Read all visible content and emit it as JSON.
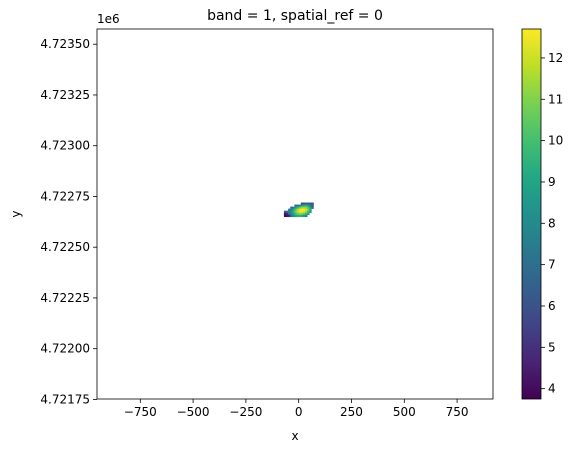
{
  "chart_data": {
    "type": "heatmap",
    "title": "band = 1, spatial_ref = 0",
    "xlabel": "x",
    "ylabel": "y",
    "y_offset_label": "1e6",
    "xlim": [
      -955,
      920
    ],
    "ylim": [
      4721752,
      4723575
    ],
    "x_ticks": [
      {
        "value": -750,
        "label": "−750"
      },
      {
        "value": -500,
        "label": "−500"
      },
      {
        "value": -250,
        "label": "−250"
      },
      {
        "value": 0,
        "label": "0"
      },
      {
        "value": 250,
        "label": "250"
      },
      {
        "value": 500,
        "label": "500"
      },
      {
        "value": 750,
        "label": "750"
      }
    ],
    "y_ticks": [
      {
        "value": 4721750,
        "label": "4.72175"
      },
      {
        "value": 4722000,
        "label": "4.72200"
      },
      {
        "value": 4722250,
        "label": "4.72225"
      },
      {
        "value": 4722500,
        "label": "4.72250"
      },
      {
        "value": 4722750,
        "label": "4.72275"
      },
      {
        "value": 4723000,
        "label": "4.72300"
      },
      {
        "value": 4723250,
        "label": "4.72325"
      },
      {
        "value": 4723500,
        "label": "4.72350"
      }
    ],
    "colorbar": {
      "colormap": "viridis",
      "vmin": 3.75,
      "vmax": 12.7,
      "ticks": [
        4,
        5,
        6,
        7,
        8,
        9,
        10,
        11,
        12
      ],
      "tick_labels": [
        "4",
        "5",
        "6",
        "7",
        "8",
        "9",
        "10",
        "11",
        "12"
      ]
    },
    "raster": {
      "x_start": -70,
      "y_start": 4722720,
      "cell_size": 10,
      "rows": [
        [
          null,
          null,
          null,
          null,
          null,
          null,
          null,
          null,
          5.9,
          6.0,
          6.2,
          6.3,
          6.2,
          6.1
        ],
        [
          null,
          null,
          null,
          null,
          null,
          6.5,
          7.2,
          7.6,
          8.4,
          9.0,
          9.4,
          8.7,
          7.6,
          6.3
        ],
        [
          null,
          null,
          null,
          6.5,
          7.5,
          8.4,
          9.5,
          10.5,
          11.3,
          11.5,
          11.2,
          10.3,
          8.8,
          6.9
        ],
        [
          null,
          null,
          6.8,
          7.8,
          8.9,
          10.2,
          11.5,
          12.4,
          12.7,
          12.6,
          12.0,
          10.8,
          9.2,
          null
        ],
        [
          6.6,
          6.9,
          7.4,
          8.3,
          9.5,
          10.7,
          11.8,
          12.3,
          12.5,
          12.2,
          11.4,
          10.2,
          8.6,
          null
        ],
        [
          4.3,
          4.8,
          7.3,
          8.0,
          9.0,
          10.0,
          10.8,
          11.3,
          11.2,
          10.6,
          9.8,
          8.6,
          null,
          null
        ],
        [
          3.8,
          4.1,
          4.5,
          7.2,
          8.2,
          8.9,
          9.2,
          9.5,
          9.1,
          8.4,
          7.6,
          null,
          null,
          null
        ]
      ]
    }
  }
}
